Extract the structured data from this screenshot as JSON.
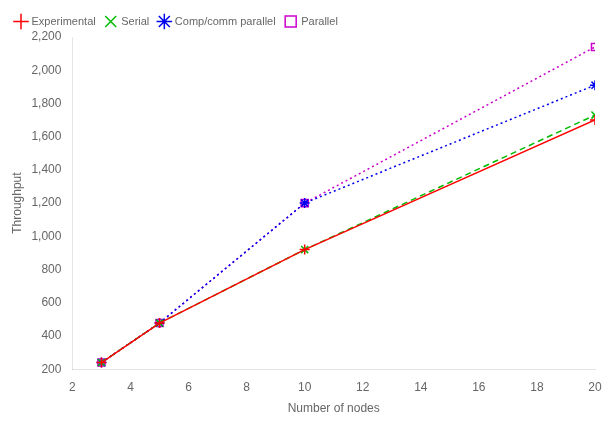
{
  "chart_data": {
    "type": "line",
    "xlabel": "Number of nodes",
    "ylabel": "Throughput",
    "xlim": [
      2,
      20
    ],
    "ylim": [
      200,
      2200
    ],
    "xticks": [
      2,
      4,
      6,
      8,
      10,
      12,
      14,
      16,
      18,
      20
    ],
    "yticks": [
      200,
      400,
      600,
      800,
      1000,
      1200,
      1400,
      1600,
      1800,
      2000,
      2200
    ],
    "grid": false,
    "legend": "upper left",
    "series": [
      {
        "name": "Experimental",
        "x": [
          3,
          5,
          10,
          20
        ],
        "values": [
          240,
          478,
          920,
          1700
        ],
        "color": "#ff0000",
        "marker": "plus",
        "line_style": "solid"
      },
      {
        "name": "Serial",
        "x": [
          3,
          5,
          10,
          20
        ],
        "values": [
          240,
          478,
          920,
          1730
        ],
        "color": "#00bb00",
        "marker": "cross",
        "line_style": "dashed"
      },
      {
        "name": "Comp/comm parallel",
        "x": [
          3,
          5,
          10,
          20
        ],
        "values": [
          240,
          478,
          1200,
          1910
        ],
        "color": "#0000ee",
        "marker": "star",
        "line_style": "dotted"
      },
      {
        "name": "Parallel",
        "x": [
          3,
          5,
          10,
          20
        ],
        "values": [
          240,
          478,
          1200,
          2140
        ],
        "color": "#cc00cc",
        "marker": "square_hollow",
        "line_style": "dotted"
      }
    ]
  }
}
